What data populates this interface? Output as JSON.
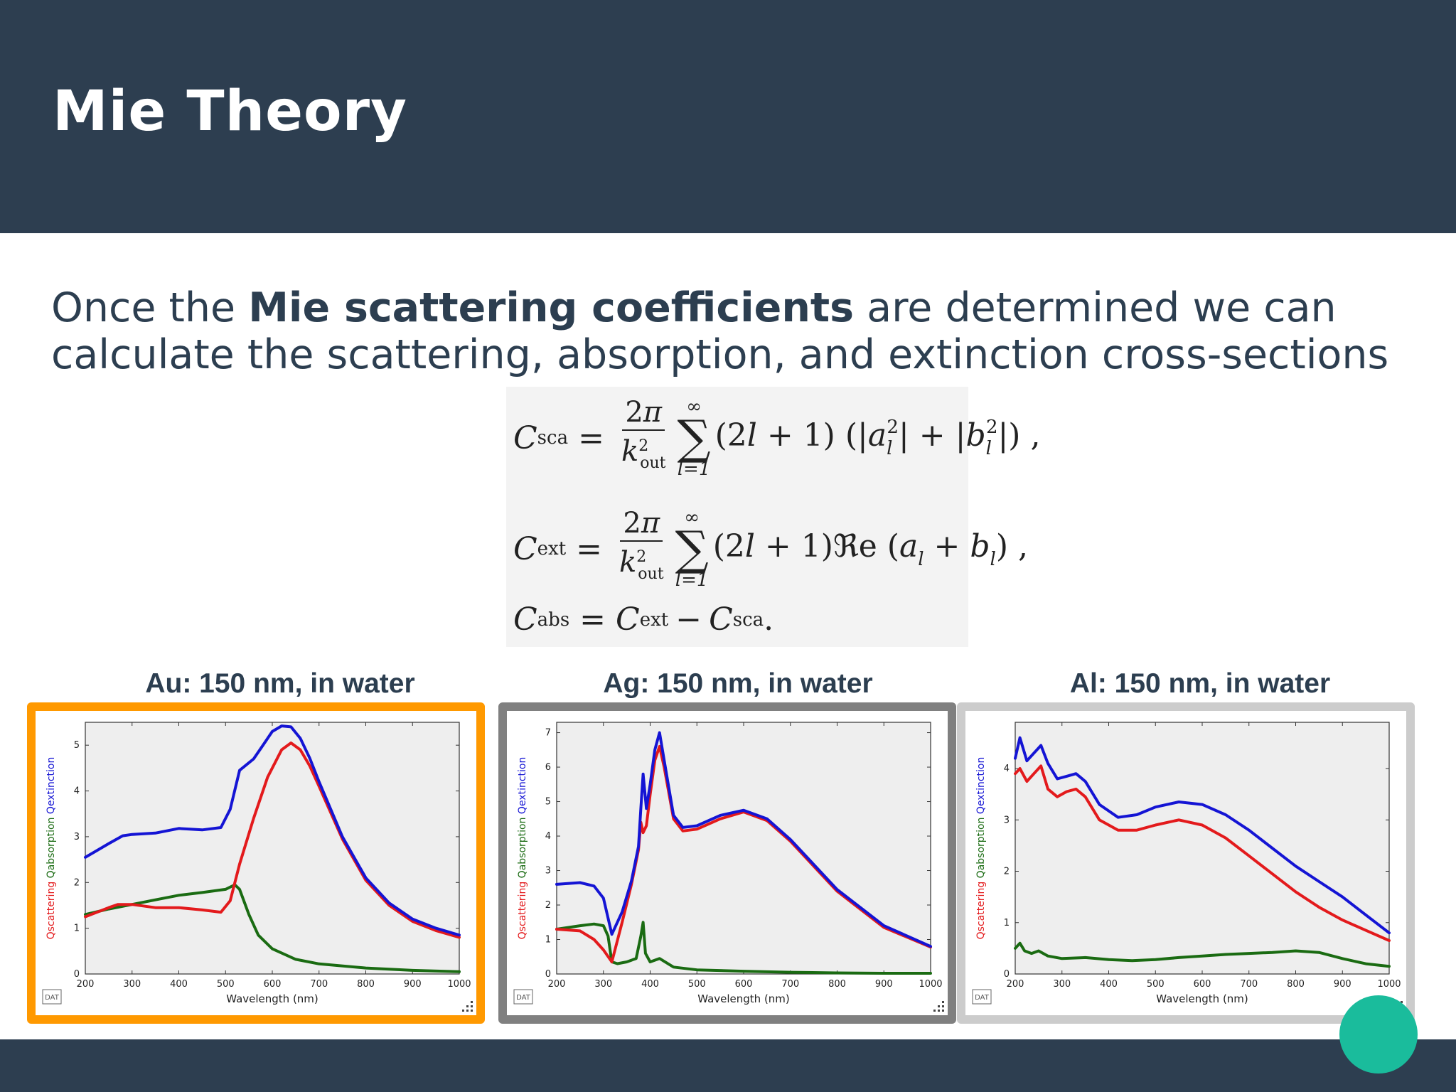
{
  "slide": {
    "title": "Mie Theory",
    "intro": {
      "before": "Once the ",
      "bold": "Mie scattering coefficients",
      "after": " are determined we can calculate the scattering, absorption, and extinction cross-sections"
    }
  },
  "equations": {
    "line1": "C_sca = 2π/k_out² Σ_{l=1}^{∞} (2l+1) (|a_l²| + |b_l²|),",
    "line2": "C_ext = 2π/k_out² Σ_{l=1}^{∞} (2l+1) ℜe (a_l + b_l),",
    "line3": "C_abs = C_ext − C_sca."
  },
  "colors": {
    "header": "#2d3e50",
    "scattering": "#e31a1c",
    "absorption": "#1a6b12",
    "extinction": "#1414d4",
    "panel_borders": [
      "#ff9900",
      "#808080",
      "#cccccc"
    ],
    "accent_dot": "#1abc9c"
  },
  "chart_data": [
    {
      "type": "line",
      "title": "Au: 150 nm, in water",
      "xlabel": "Wavelength (nm)",
      "ylabel_parts": [
        "Qscattering",
        "Qabsorption",
        "Qextinction"
      ],
      "xlim": [
        200,
        1000
      ],
      "ylim": [
        0,
        5.5
      ],
      "xticks": [
        200,
        300,
        400,
        500,
        600,
        700,
        800,
        900,
        1000
      ],
      "yticks": [
        0,
        1,
        2,
        3,
        4,
        5
      ],
      "badge": "DAT",
      "series": [
        {
          "role": "extinction",
          "x": [
            200,
            250,
            280,
            300,
            350,
            400,
            450,
            490,
            510,
            530,
            560,
            580,
            600,
            620,
            640,
            660,
            680,
            700,
            750,
            800,
            850,
            900,
            950,
            1000
          ],
          "y": [
            2.55,
            2.85,
            3.02,
            3.05,
            3.08,
            3.18,
            3.15,
            3.2,
            3.6,
            4.45,
            4.7,
            5.0,
            5.3,
            5.42,
            5.4,
            5.15,
            4.72,
            4.2,
            3.0,
            2.1,
            1.55,
            1.2,
            1.0,
            0.85
          ]
        },
        {
          "role": "scattering",
          "x": [
            200,
            250,
            270,
            300,
            350,
            400,
            450,
            490,
            510,
            530,
            560,
            590,
            620,
            640,
            660,
            680,
            700,
            750,
            800,
            850,
            900,
            950,
            1000
          ],
          "y": [
            1.25,
            1.45,
            1.52,
            1.52,
            1.45,
            1.45,
            1.4,
            1.35,
            1.6,
            2.4,
            3.4,
            4.3,
            4.9,
            5.05,
            4.9,
            4.55,
            4.1,
            2.95,
            2.05,
            1.5,
            1.15,
            0.95,
            0.8
          ]
        },
        {
          "role": "absorption",
          "x": [
            200,
            250,
            300,
            350,
            400,
            450,
            500,
            520,
            530,
            550,
            570,
            600,
            650,
            700,
            800,
            900,
            1000
          ],
          "y": [
            1.3,
            1.42,
            1.52,
            1.62,
            1.72,
            1.78,
            1.85,
            1.95,
            1.85,
            1.3,
            0.85,
            0.55,
            0.32,
            0.22,
            0.13,
            0.08,
            0.05
          ]
        }
      ]
    },
    {
      "type": "line",
      "title": "Ag: 150 nm, in water",
      "xlabel": "Wavelength (nm)",
      "ylabel_parts": [
        "Qscattering",
        "Qabsorption",
        "Qextinction"
      ],
      "xlim": [
        200,
        1000
      ],
      "ylim": [
        0,
        7.3
      ],
      "xticks": [
        200,
        300,
        400,
        500,
        600,
        700,
        800,
        900,
        1000
      ],
      "yticks": [
        0,
        1,
        2,
        3,
        4,
        5,
        6,
        7
      ],
      "badge": "DAT",
      "series": [
        {
          "role": "extinction",
          "x": [
            200,
            250,
            280,
            300,
            318,
            340,
            360,
            375,
            380,
            385,
            392,
            400,
            410,
            420,
            430,
            450,
            470,
            500,
            550,
            600,
            650,
            700,
            800,
            900,
            1000
          ],
          "y": [
            2.6,
            2.65,
            2.55,
            2.2,
            1.15,
            1.8,
            2.7,
            3.7,
            4.8,
            5.8,
            4.8,
            5.5,
            6.5,
            7.0,
            6.2,
            4.6,
            4.25,
            4.3,
            4.6,
            4.75,
            4.5,
            3.9,
            2.45,
            1.4,
            0.8
          ]
        },
        {
          "role": "scattering",
          "x": [
            200,
            250,
            280,
            300,
            318,
            340,
            360,
            375,
            380,
            385,
            392,
            400,
            410,
            420,
            430,
            450,
            470,
            500,
            550,
            600,
            650,
            700,
            800,
            900,
            1000
          ],
          "y": [
            1.3,
            1.25,
            1.0,
            0.7,
            0.35,
            1.5,
            2.6,
            3.6,
            4.4,
            4.1,
            4.3,
            5.2,
            6.2,
            6.6,
            6.0,
            4.5,
            4.15,
            4.2,
            4.5,
            4.7,
            4.45,
            3.85,
            2.4,
            1.35,
            0.78
          ]
        },
        {
          "role": "absorption",
          "x": [
            200,
            250,
            280,
            300,
            310,
            318,
            330,
            350,
            370,
            380,
            385,
            390,
            400,
            420,
            450,
            500,
            600,
            700,
            800,
            900,
            1000
          ],
          "y": [
            1.3,
            1.4,
            1.45,
            1.4,
            1.1,
            0.35,
            0.3,
            0.35,
            0.45,
            1.1,
            1.5,
            0.6,
            0.35,
            0.45,
            0.2,
            0.12,
            0.08,
            0.05,
            0.03,
            0.02,
            0.02
          ]
        }
      ]
    },
    {
      "type": "line",
      "title": "Al: 150 nm, in water",
      "xlabel": "Wavelength (nm)",
      "ylabel_parts": [
        "Qscattering",
        "Qabsorption",
        "Qextinction"
      ],
      "xlim": [
        200,
        1000
      ],
      "ylim": [
        0,
        4.9
      ],
      "xticks": [
        200,
        300,
        400,
        500,
        600,
        700,
        800,
        900,
        1000
      ],
      "yticks": [
        0,
        1,
        2,
        3,
        4
      ],
      "badge": "DAT",
      "series": [
        {
          "role": "extinction",
          "x": [
            200,
            210,
            225,
            240,
            255,
            270,
            290,
            310,
            330,
            350,
            380,
            420,
            460,
            500,
            550,
            600,
            650,
            700,
            750,
            800,
            850,
            900,
            950,
            1000
          ],
          "y": [
            4.2,
            4.6,
            4.15,
            4.3,
            4.45,
            4.1,
            3.8,
            3.85,
            3.9,
            3.75,
            3.3,
            3.05,
            3.1,
            3.25,
            3.35,
            3.3,
            3.1,
            2.8,
            2.45,
            2.1,
            1.8,
            1.5,
            1.15,
            0.8
          ]
        },
        {
          "role": "scattering",
          "x": [
            200,
            210,
            225,
            240,
            255,
            270,
            290,
            310,
            330,
            350,
            380,
            420,
            460,
            500,
            550,
            600,
            650,
            700,
            750,
            800,
            850,
            900,
            950,
            1000
          ],
          "y": [
            3.9,
            4.0,
            3.75,
            3.9,
            4.05,
            3.6,
            3.45,
            3.55,
            3.6,
            3.45,
            3.0,
            2.8,
            2.8,
            2.9,
            3.0,
            2.9,
            2.65,
            2.3,
            1.95,
            1.6,
            1.3,
            1.05,
            0.85,
            0.65
          ]
        },
        {
          "role": "absorption",
          "x": [
            200,
            210,
            220,
            235,
            250,
            270,
            300,
            350,
            400,
            450,
            500,
            550,
            600,
            650,
            700,
            750,
            800,
            850,
            900,
            950,
            1000
          ],
          "y": [
            0.5,
            0.6,
            0.45,
            0.4,
            0.45,
            0.35,
            0.3,
            0.32,
            0.28,
            0.26,
            0.28,
            0.32,
            0.35,
            0.38,
            0.4,
            0.42,
            0.45,
            0.42,
            0.3,
            0.2,
            0.15
          ]
        }
      ]
    }
  ]
}
